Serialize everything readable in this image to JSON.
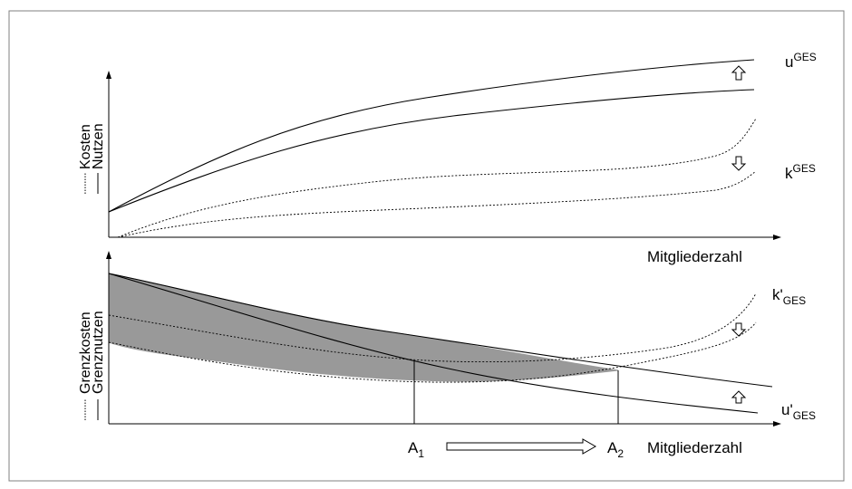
{
  "top_panel": {
    "y_label_solid": "Nutzen",
    "y_label_dotted": "Kosten",
    "x_label": "Mitgliederzahl",
    "u_label": {
      "base": "u",
      "sup": "GES"
    },
    "k_label": {
      "base": "k",
      "sup": "GES"
    },
    "arrows": [
      "up-arrow",
      "down-arrow"
    ]
  },
  "bottom_panel": {
    "y_label_solid": "Grenznutzen",
    "y_label_dotted": "Grenzkosten",
    "x_label": "Mitgliederzahl",
    "k_label": {
      "base": "k'",
      "sub": "GES"
    },
    "u_label": {
      "base": "u'",
      "sub": "GES"
    },
    "a1": {
      "base": "A",
      "sub": "1"
    },
    "a2": {
      "base": "A",
      "sub": "2"
    },
    "arrows": [
      "down-arrow",
      "up-arrow",
      "right-arrow"
    ]
  },
  "colors": {
    "line": "#000000",
    "shade": "#999999",
    "frame": "#808080"
  }
}
